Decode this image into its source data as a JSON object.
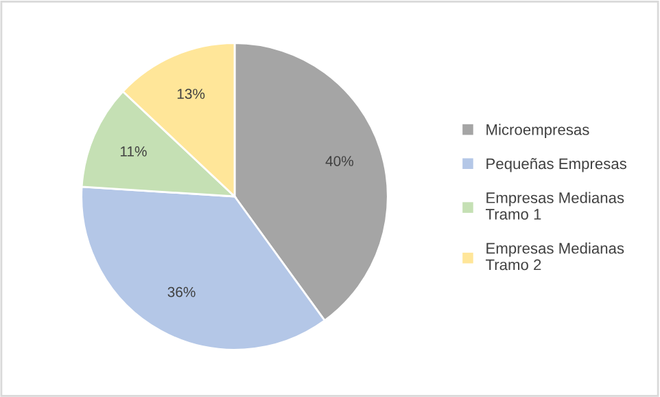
{
  "chart_data": {
    "type": "pie",
    "categories": [
      "Microempresas",
      "Pequeñas Empresas",
      "Empresas Medianas Tramo 1",
      "Empresas Medianas Tramo 2"
    ],
    "values": [
      40,
      36,
      11,
      13
    ],
    "colors": [
      "#a5a5a5",
      "#b4c7e7",
      "#c5e0b4",
      "#ffe699"
    ],
    "value_labels": [
      "40%",
      "36%",
      "11%",
      "13%"
    ],
    "legend": "right"
  }
}
